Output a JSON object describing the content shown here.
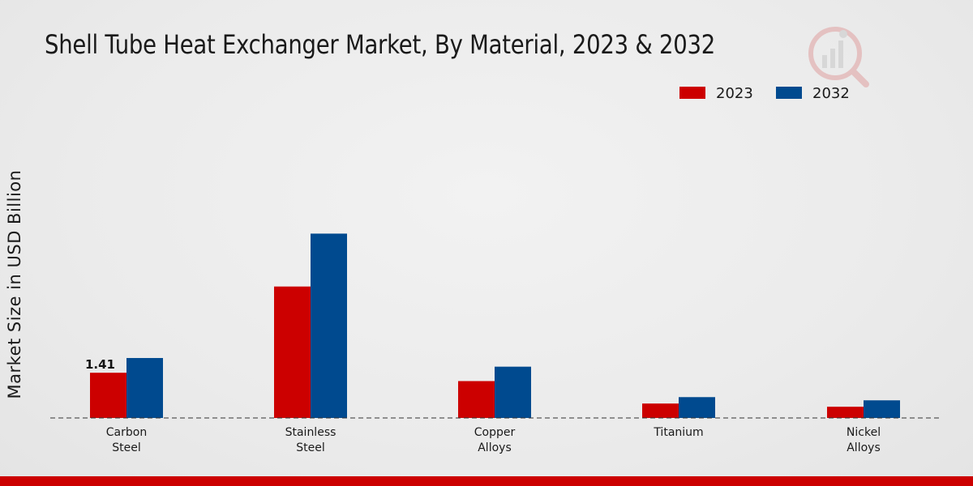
{
  "chart_data": {
    "type": "bar",
    "title": "Shell Tube Heat Exchanger Market, By Material, 2023 & 2032",
    "xlabel": "",
    "ylabel": "Market Size in USD Billion",
    "categories": [
      [
        "Carbon",
        "Steel"
      ],
      [
        "Stainless",
        "Steel"
      ],
      [
        "Copper",
        "Alloys"
      ],
      [
        "Titanium"
      ],
      [
        "Nickel",
        "Alloys"
      ]
    ],
    "series": [
      {
        "name": "2023",
        "color": "#cc0000",
        "values": [
          1.41,
          4.1,
          1.15,
          0.45,
          0.35
        ]
      },
      {
        "name": "2032",
        "color": "#004a8f",
        "values": [
          1.87,
          5.75,
          1.6,
          0.65,
          0.55
        ]
      }
    ],
    "data_labels": [
      {
        "series": 0,
        "index": 0,
        "text": "1.41"
      }
    ],
    "ylim": [
      0,
      9.5
    ],
    "grid": false,
    "legend_position": "top-right",
    "baseline_style": "dashed"
  }
}
